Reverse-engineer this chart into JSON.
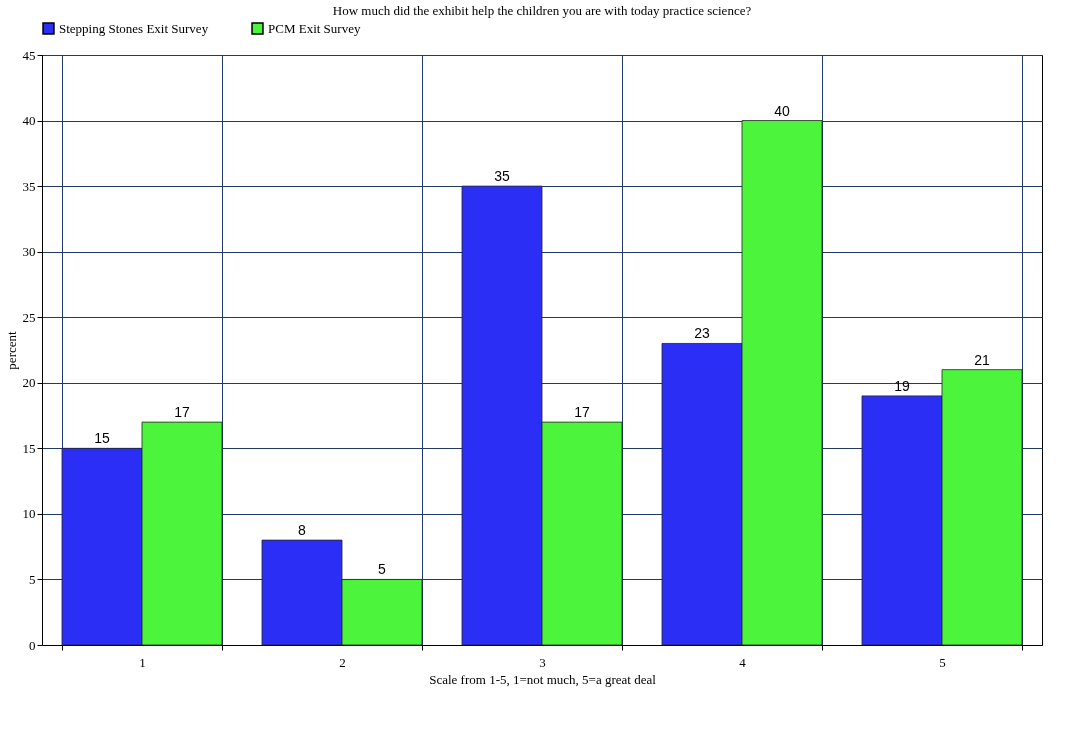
{
  "chart_data": {
    "type": "bar",
    "title": "How much did the exhibit help the children you are with today practice science?",
    "xlabel": "Scale from 1-5, 1=not much, 5=a great deal",
    "ylabel": "percent",
    "categories": [
      "1",
      "2",
      "3",
      "4",
      "5"
    ],
    "series": [
      {
        "name": "Stepping Stones Exit Survey",
        "color": "#2b2ff5",
        "values": [
          15,
          8,
          35,
          23,
          19
        ]
      },
      {
        "name": "PCM Exit Survey",
        "color": "#4cf53c",
        "values": [
          17,
          5,
          17,
          40,
          21
        ]
      }
    ],
    "ylim": [
      0,
      45
    ],
    "yticks": [
      0,
      5,
      10,
      15,
      20,
      25,
      30,
      35,
      40,
      45
    ],
    "grid": true,
    "legend": "top left",
    "data_labels": true
  }
}
